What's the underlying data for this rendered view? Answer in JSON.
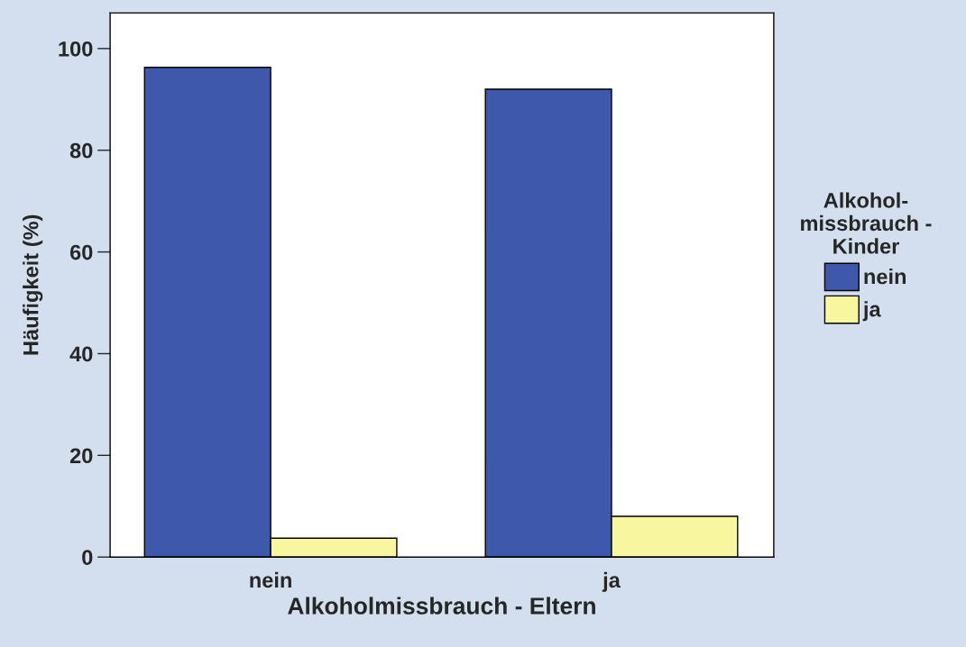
{
  "chart_data": {
    "type": "bar",
    "xlabel": "Alkoholmissbrauch - Eltern",
    "ylabel": "Häufigkeit (%)",
    "legend_title": "Alkohol-\nmissbrauch -\nKinder",
    "categories": [
      "nein",
      "ja"
    ],
    "series": [
      {
        "name": "nein",
        "color": "#3e58ac",
        "values": [
          96.3,
          92.0
        ]
      },
      {
        "name": "ja",
        "color": "#f8f7a0",
        "values": [
          3.7,
          8.0
        ]
      }
    ],
    "ylim": [
      0,
      107
    ],
    "yticks": [
      0,
      20,
      40,
      60,
      80,
      100
    ],
    "grid": false,
    "legend": "right"
  }
}
